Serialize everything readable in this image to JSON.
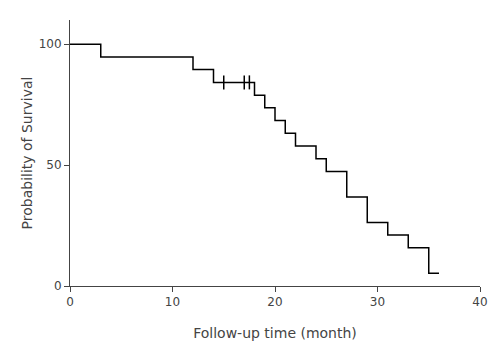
{
  "chart_data": {
    "type": "line",
    "xlabel": "Follow-up time (month)",
    "ylabel": "Probability of Survival",
    "xlim": [
      0,
      40
    ],
    "ylim": [
      0,
      110
    ],
    "xticks": [
      0,
      10,
      20,
      30,
      40
    ],
    "yticks": [
      0,
      50,
      100
    ],
    "grid": false,
    "series": [
      {
        "type": "line",
        "color": "#000000",
        "x": [
          0,
          3,
          3,
          12,
          12,
          14,
          14,
          16,
          16,
          18,
          18,
          19,
          19,
          20,
          20,
          21,
          21,
          22,
          22,
          24,
          24,
          25,
          25,
          27,
          27,
          29,
          29,
          31,
          31,
          33,
          33,
          35,
          35,
          36
        ],
        "values": [
          100,
          100,
          94.7,
          94.7,
          89.5,
          89.5,
          84.2,
          84.2,
          84.2,
          84.2,
          78.9,
          78.9,
          73.7,
          73.7,
          68.4,
          68.4,
          63.2,
          63.2,
          57.9,
          57.9,
          52.6,
          52.6,
          47.4,
          47.4,
          36.8,
          36.8,
          26.3,
          26.3,
          21.1,
          21.1,
          15.8,
          15.8,
          5.3,
          5.3
        ]
      },
      {
        "type": "scatter",
        "marker": "line-ns",
        "color": "#000000",
        "x": [
          15.0,
          17.0,
          17.5
        ],
        "values": [
          84.2,
          84.2,
          84.2
        ]
      }
    ]
  }
}
